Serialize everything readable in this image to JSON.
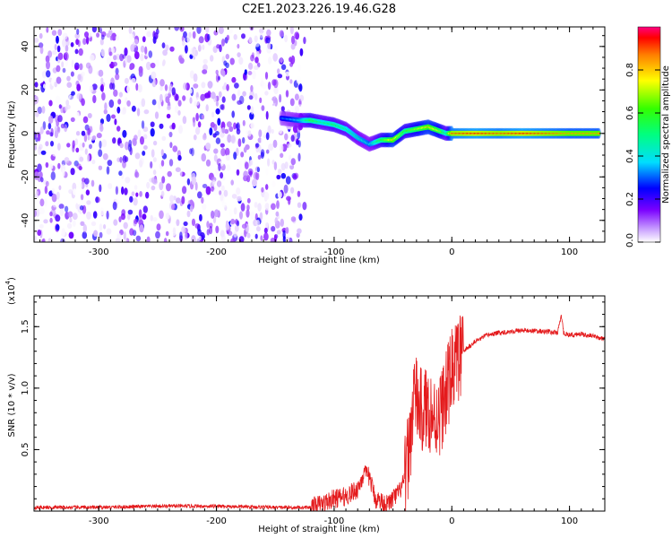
{
  "title": "C2E1.2023.226.19.46.G28",
  "chart_data": [
    {
      "type": "heatmap",
      "xlabel": "Height of straight line (km)",
      "ylabel": "Frequency (Hz)",
      "xlim": [
        -355,
        130
      ],
      "ylim": [
        -50,
        49
      ],
      "xticks": [
        -300,
        -200,
        -100,
        0,
        100
      ],
      "yticks": [
        -40,
        -20,
        0,
        20,
        40
      ],
      "colorbar": {
        "label": "Normalized spectral amplitude",
        "range": [
          0,
          1
        ],
        "ticks": [
          0.0,
          0.2,
          0.4,
          0.6,
          0.8
        ],
        "tick_labels": [
          "0.0",
          "0.2",
          "0.4",
          "0.6",
          "0.8"
        ]
      },
      "noise_region": {
        "x_range": [
          -355,
          -125
        ],
        "amplitude": [
          0.0,
          0.25
        ]
      },
      "ridge": {
        "x": [
          -145,
          -130,
          -120,
          -110,
          -100,
          -90,
          -80,
          -70,
          -60,
          -50,
          -40,
          -30,
          -20,
          -10,
          -5,
          0,
          20,
          40,
          60,
          80,
          100,
          125
        ],
        "frequency": [
          7,
          6,
          6,
          5,
          4,
          2,
          -2,
          -5,
          -3,
          -3,
          1,
          2,
          3,
          1,
          0,
          0,
          0,
          0,
          0,
          0,
          0,
          0
        ],
        "amplitude": [
          0.3,
          0.4,
          0.6,
          0.5,
          0.55,
          0.5,
          0.45,
          0.4,
          0.6,
          0.8,
          0.6,
          0.7,
          0.8,
          0.7,
          0.5,
          0.9,
          0.95,
          0.9,
          0.95,
          0.9,
          0.85,
          0.85
        ]
      }
    },
    {
      "type": "line",
      "xlabel": "Height of straight line (km)",
      "ylabel": "SNR (10 * v/v)",
      "scale_label": "(x10",
      "scale_exponent": "4",
      "scale_close": ")",
      "xlim": [
        -355,
        130
      ],
      "ylim": [
        0,
        1.75
      ],
      "xticks": [
        -300,
        -200,
        -100,
        0,
        100
      ],
      "yticks": [
        0.5,
        1.0,
        1.5
      ],
      "ytick_labels": [
        "0.5",
        "1.0",
        "1.5"
      ],
      "series": [
        {
          "color": "#e41a1c",
          "x": [
            -355,
            -300,
            -250,
            -200,
            -150,
            -120,
            -110,
            -100,
            -90,
            -80,
            -75,
            -70,
            -65,
            -60,
            -55,
            -50,
            -45,
            -40,
            -35,
            -32,
            -30,
            -25,
            -20,
            -15,
            -10,
            -5,
            0,
            10,
            20,
            30,
            40,
            60,
            80,
            90,
            93,
            95,
            100,
            110,
            120,
            130
          ],
          "y": [
            0.03,
            0.03,
            0.04,
            0.04,
            0.03,
            0.03,
            0.06,
            0.1,
            0.12,
            0.18,
            0.3,
            0.28,
            0.1,
            0.08,
            0.05,
            0.1,
            0.15,
            0.25,
            0.6,
            1.0,
            0.9,
            0.8,
            0.85,
            0.75,
            0.8,
            0.95,
            1.15,
            1.3,
            1.38,
            1.43,
            1.45,
            1.47,
            1.46,
            1.45,
            1.6,
            1.45,
            1.43,
            1.44,
            1.42,
            1.4
          ]
        }
      ]
    }
  ]
}
